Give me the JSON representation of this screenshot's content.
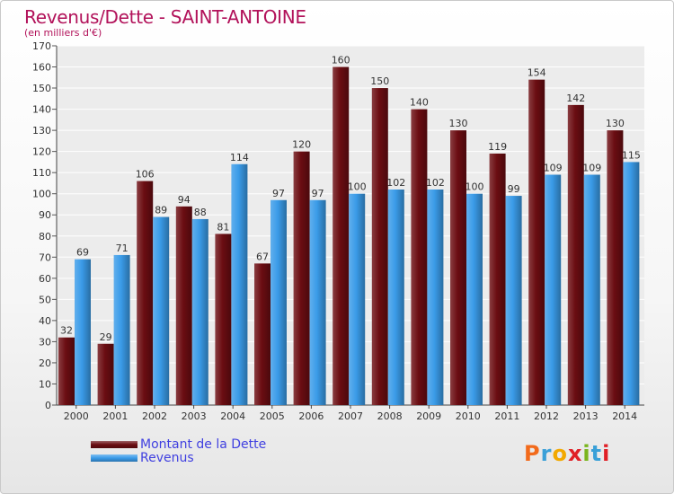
{
  "title": "Revenus/Dette - SAINT-ANTOINE",
  "subtitle": "(en milliers d'€)",
  "logo": {
    "text": "Proxiti",
    "colors": [
      "#f26a1b",
      "#3aa0d8",
      "#f2a900",
      "#e01f26",
      "#7ab51d",
      "#3aa0d8",
      "#e01f26"
    ]
  },
  "colors": {
    "debt": "#6b0d12",
    "revenue": "#3a9be8",
    "title": "#b2125a",
    "legend_text": "#4040e0"
  },
  "chart_data": {
    "type": "bar",
    "categories": [
      "2000",
      "2001",
      "2002",
      "2003",
      "2004",
      "2005",
      "2006",
      "2007",
      "2008",
      "2009",
      "2010",
      "2011",
      "2012",
      "2013",
      "2014"
    ],
    "series": [
      {
        "name": "Montant de la Dette",
        "values": [
          32,
          29,
          106,
          94,
          81,
          67,
          120,
          160,
          150,
          140,
          130,
          119,
          154,
          142,
          130
        ]
      },
      {
        "name": "Revenus",
        "values": [
          69,
          71,
          89,
          88,
          114,
          97,
          97,
          100,
          102,
          102,
          100,
          99,
          109,
          109,
          115
        ]
      }
    ],
    "ylim": [
      0,
      170
    ],
    "yticks": [
      0,
      10,
      20,
      30,
      40,
      50,
      60,
      70,
      80,
      90,
      100,
      110,
      120,
      130,
      140,
      150,
      160,
      170
    ],
    "grid": true,
    "legend": "bottom-left"
  }
}
